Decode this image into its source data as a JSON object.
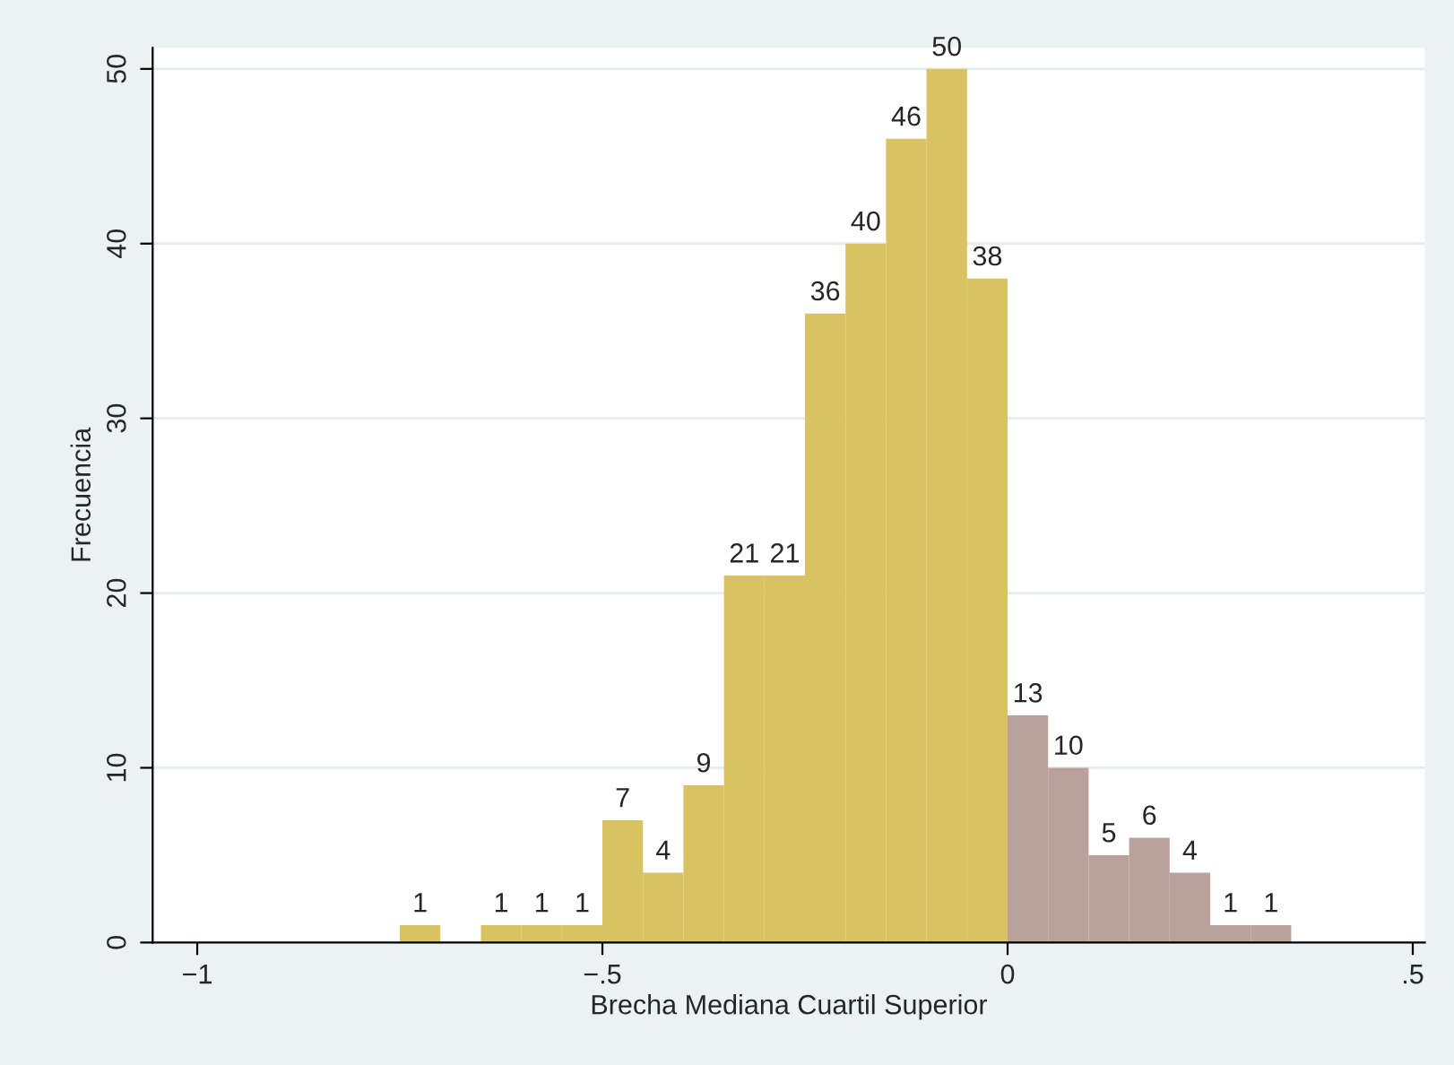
{
  "chart_data": {
    "type": "histogram",
    "xlabel": "Brecha Mediana Cuartil Superior",
    "ylabel": "Frecuencia",
    "bins": [
      -0.75,
      -0.7,
      -0.65,
      -0.6,
      -0.55,
      -0.5,
      -0.45,
      -0.4,
      -0.35,
      -0.3,
      -0.25,
      -0.2,
      -0.15,
      -0.1,
      -0.05,
      0,
      0.05,
      0.1,
      0.15,
      0.2,
      0.25,
      0.3,
      0.35
    ],
    "values": [
      1,
      0,
      1,
      1,
      1,
      7,
      4,
      9,
      21,
      21,
      36,
      40,
      46,
      50,
      38,
      13,
      10,
      5,
      6,
      4,
      1,
      1
    ],
    "value_labels": [
      "1",
      null,
      "1",
      "1",
      "1",
      "7",
      "4",
      "9",
      "21",
      "21",
      "36",
      "40",
      "46",
      "50",
      "38",
      "13",
      "10",
      "5",
      "6",
      "4",
      "1",
      "1"
    ],
    "colors": [
      "#d9c262",
      "#d9c262",
      "#d9c262",
      "#d9c262",
      "#d9c262",
      "#d9c262",
      "#d9c262",
      "#d9c262",
      "#d9c262",
      "#d9c262",
      "#d9c262",
      "#d9c262",
      "#d9c262",
      "#d9c262",
      "#d9c262",
      "#bba19b",
      "#bba19b",
      "#bba19b",
      "#bba19b",
      "#bba19b",
      "#bba19b",
      "#bba19b"
    ],
    "xlim": [
      -1.055,
      0.515
    ],
    "ylim": [
      0,
      51.2
    ],
    "xticks": [
      {
        "value": -1,
        "label": "−1"
      },
      {
        "value": -0.5,
        "label": "−.5"
      },
      {
        "value": 0,
        "label": "0"
      },
      {
        "value": 0.5,
        "label": ".5"
      }
    ],
    "yticks": [
      0,
      10,
      20,
      30,
      40,
      50
    ],
    "grid": "y"
  }
}
